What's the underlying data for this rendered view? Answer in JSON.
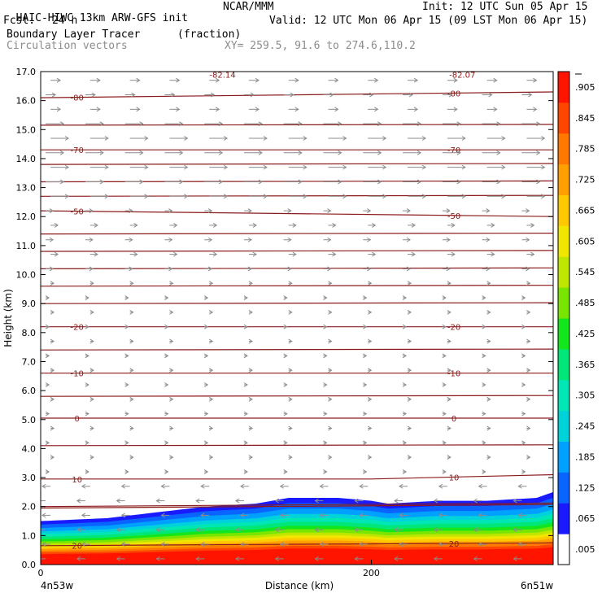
{
  "header": {
    "title_left": "HAIC-HIWC 13km ARW-GFS init",
    "org": "NCAR/MMM",
    "init": "Init: 12 UTC Sun 05 Apr 15",
    "fcst_label": "Fcst:",
    "fcst_value": "24 h",
    "valid": "Valid: 12 UTC Mon 06 Apr 15 (09 LST Mon 06 Apr 15)",
    "field": "Boundary Layer Tracer",
    "field_units": "(fraction)",
    "vectors": "Circulation vectors",
    "xy": "XY= 259.5, 91.6 to 274.6,110.2"
  },
  "colors": {
    "contour": "#8b1a1a",
    "vector": "#8c8c8c",
    "palette": [
      "#ffffff",
      "#1a1aff",
      "#0a64ff",
      "#00a0ff",
      "#00d2dc",
      "#00e6b4",
      "#00e678",
      "#14e61e",
      "#78e600",
      "#bee600",
      "#f0e600",
      "#ffc800",
      "#ffa000",
      "#ff7800",
      "#ff4600",
      "#ff1400"
    ]
  },
  "chart_data": {
    "type": "heatmap",
    "title": "Boundary Layer Tracer",
    "xlabel": "Distance (km)",
    "ylabel": "Height (km)",
    "xlim": [
      0,
      310
    ],
    "ylim": [
      0,
      17
    ],
    "x_ticks": [
      0,
      200
    ],
    "x_tick_labels": [
      "0",
      "200"
    ],
    "x_end_labels": [
      "4n53w",
      "6n51w"
    ],
    "y_ticks": [
      0,
      1,
      2,
      3,
      4,
      5,
      6,
      7,
      8,
      9,
      10,
      11,
      12,
      13,
      14,
      15,
      16,
      17
    ],
    "y_tick_labels": [
      "0.0",
      "1.0",
      "2.0",
      "3.0",
      "4.0",
      "5.0",
      "6.0",
      "7.0",
      "8.0",
      "9.0",
      "10.0",
      "11.0",
      "12.0",
      "13.0",
      "14.0",
      "15.0",
      "16.0",
      "17.0"
    ],
    "colorbar_labels": [
      ".005",
      ".065",
      ".125",
      ".185",
      ".245",
      ".305",
      ".365",
      ".425",
      ".485",
      ".545",
      ".605",
      ".665",
      ".725",
      ".785",
      ".845",
      ".905"
    ],
    "tracer_top_height_km": {
      "x": [
        0,
        40,
        70,
        100,
        130,
        150,
        180,
        200,
        210,
        240,
        270,
        300,
        310
      ],
      "y": [
        1.5,
        1.6,
        1.8,
        2.0,
        2.1,
        2.3,
        2.3,
        2.2,
        2.1,
        2.2,
        2.2,
        2.3,
        2.5
      ]
    },
    "temperature_contours_C": [
      {
        "label": "-80",
        "x": [
          0,
          310
        ],
        "y": [
          16.1,
          16.3
        ]
      },
      {
        "label": "-70",
        "x": [
          0,
          310
        ],
        "y": [
          14.3,
          14.3
        ]
      },
      {
        "label": "-50",
        "x": [
          0,
          310
        ],
        "y": [
          12.2,
          12.0
        ]
      },
      {
        "label": "-20",
        "x": [
          0,
          310
        ],
        "y": [
          8.2,
          8.2
        ]
      },
      {
        "label": "-10",
        "x": [
          0,
          310
        ],
        "y": [
          6.6,
          6.6
        ]
      },
      {
        "label": "0",
        "x": [
          0,
          310
        ],
        "y": [
          5.05,
          5.05
        ]
      },
      {
        "label": "10",
        "x": [
          0,
          200,
          310
        ],
        "y": [
          2.95,
          2.95,
          3.1
        ]
      },
      {
        "label": "20",
        "x": [
          0,
          310
        ],
        "y": [
          0.65,
          0.75
        ]
      }
    ],
    "top_contour_labels": [
      "-82.14",
      "-82.07"
    ]
  }
}
